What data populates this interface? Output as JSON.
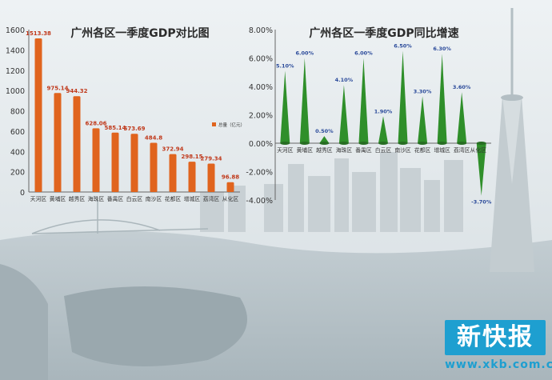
{
  "chart_data": [
    {
      "type": "bar",
      "title": "广州各区一季度GDP对比图",
      "categories": [
        "天河区",
        "黄埔区",
        "越秀区",
        "海珠区",
        "番禺区",
        "白云区",
        "南沙区",
        "花都区",
        "增城区",
        "荔湾区",
        "从化区"
      ],
      "values": [
        1513.38,
        975.14,
        944.32,
        628.06,
        585.14,
        573.69,
        484.8,
        372.94,
        298.15,
        279.34,
        96.88
      ],
      "value_labels": [
        "1513.38",
        "975.14",
        "944.32",
        "628.06",
        "585.14",
        "573.69",
        "484.8",
        "372.94",
        "298.15",
        "279.34",
        "96.88"
      ],
      "ylim": [
        0,
        1600
      ],
      "y_ticks": [
        "0",
        "200",
        "400",
        "600",
        "800",
        "1000",
        "1200",
        "1400",
        "1600"
      ],
      "series_name": "总量（亿元）",
      "legend_position": "right",
      "bar_color": "#e0641e"
    },
    {
      "type": "bar",
      "title": "广州各区一季度GDP同比增速",
      "categories": [
        "天河区",
        "黄埔区",
        "越秀区",
        "海珠区",
        "番禺区",
        "白云区",
        "南沙区",
        "花都区",
        "增城区",
        "荔湾区",
        "从化区"
      ],
      "values": [
        5.1,
        6.0,
        0.5,
        4.1,
        6.0,
        1.9,
        6.5,
        3.3,
        6.3,
        3.6,
        -3.7
      ],
      "value_labels": [
        "5.10%",
        "6.00%",
        "0.50%",
        "4.10%",
        "6.00%",
        "1.90%",
        "6.50%",
        "3.30%",
        "6.30%",
        "3.60%",
        "-3.70%"
      ],
      "ylim": [
        -4,
        8
      ],
      "y_ticks": [
        "-4.00%",
        "-2.00%",
        "0.00%",
        "2.00%",
        "4.00%",
        "6.00%",
        "8.00%"
      ],
      "bar_color": "#2f8f2a"
    }
  ],
  "logo": {
    "text": "新快报",
    "sub": "www.xkb.com.cn"
  },
  "colors": {
    "sky": "#dfe6ea",
    "water": "#b9c6cc",
    "accent": "#1e9fd0"
  }
}
